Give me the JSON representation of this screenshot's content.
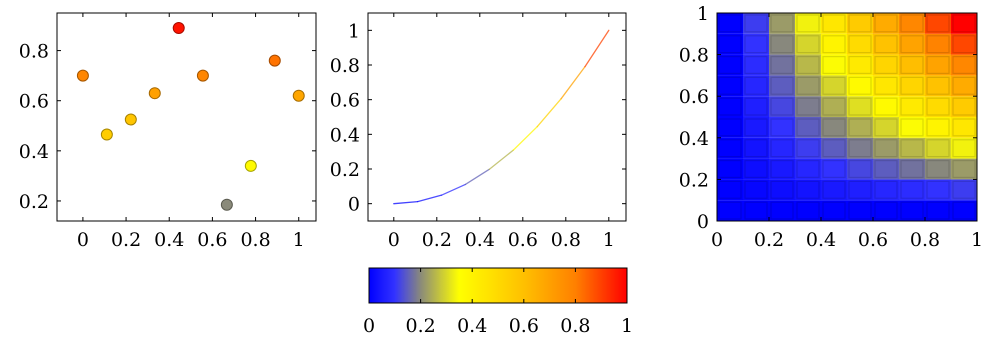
{
  "colormap": {
    "name": "hot2",
    "stops": [
      {
        "pos": 0.0,
        "color": "#0000ff"
      },
      {
        "pos": 0.1,
        "color": "#3333ff"
      },
      {
        "pos": 0.2,
        "color": "#8a8a7a"
      },
      {
        "pos": 0.35,
        "color": "#ffff00"
      },
      {
        "pos": 0.6,
        "color": "#ffc000"
      },
      {
        "pos": 0.8,
        "color": "#ff8000"
      },
      {
        "pos": 1.0,
        "color": "#ff0000"
      }
    ]
  },
  "chart_data": [
    {
      "type": "scatter",
      "title": "",
      "xlabel": "",
      "ylabel": "",
      "xlim": [
        -0.12,
        1.08
      ],
      "ylim": [
        0.12,
        0.95
      ],
      "xticks": [
        "0",
        "0.2",
        "0.4",
        "0.6",
        "0.8",
        "1"
      ],
      "yticks": [
        "0.2",
        "0.4",
        "0.6",
        "0.8"
      ],
      "xtick_values": [
        0,
        0.2,
        0.4,
        0.6,
        0.8,
        1
      ],
      "ytick_values": [
        0.2,
        0.4,
        0.6,
        0.8
      ],
      "points": [
        {
          "x": 0.0,
          "y": 0.7,
          "c": 0.78
        },
        {
          "x": 0.111,
          "y": 0.465,
          "c": 0.55
        },
        {
          "x": 0.222,
          "y": 0.525,
          "c": 0.58
        },
        {
          "x": 0.333,
          "y": 0.63,
          "c": 0.7
        },
        {
          "x": 0.444,
          "y": 0.89,
          "c": 0.97
        },
        {
          "x": 0.556,
          "y": 0.7,
          "c": 0.78
        },
        {
          "x": 0.667,
          "y": 0.185,
          "c": 0.2
        },
        {
          "x": 0.778,
          "y": 0.34,
          "c": 0.37
        },
        {
          "x": 0.889,
          "y": 0.76,
          "c": 0.82
        },
        {
          "x": 1.0,
          "y": 0.62,
          "c": 0.68
        }
      ]
    },
    {
      "type": "line",
      "title": "",
      "xlabel": "",
      "ylabel": "",
      "xlim": [
        -0.12,
        1.08
      ],
      "ylim": [
        -0.1,
        1.1
      ],
      "xticks": [
        "0",
        "0.2",
        "0.4",
        "0.6",
        "0.8",
        "1"
      ],
      "yticks": [
        "0",
        "0.2",
        "0.4",
        "0.6",
        "0.8",
        "1"
      ],
      "xtick_values": [
        0,
        0.2,
        0.4,
        0.6,
        0.8,
        1
      ],
      "ytick_values": [
        0,
        0.2,
        0.4,
        0.6,
        0.8,
        1
      ],
      "x": [
        0,
        0.111,
        0.222,
        0.333,
        0.444,
        0.556,
        0.667,
        0.778,
        0.889,
        1.0
      ],
      "y": [
        0,
        0.012,
        0.049,
        0.111,
        0.198,
        0.309,
        0.444,
        0.605,
        0.79,
        1.0
      ],
      "color_by": "y"
    },
    {
      "type": "heatmap",
      "title": "",
      "xlabel": "",
      "ylabel": "",
      "xlim": [
        0,
        1
      ],
      "ylim": [
        0,
        1
      ],
      "xticks": [
        "0",
        "0.2",
        "0.4",
        "0.6",
        "0.8",
        "1"
      ],
      "yticks": [
        "0",
        "0.2",
        "0.4",
        "0.6",
        "0.8",
        "1"
      ],
      "xtick_values": [
        0,
        0.2,
        0.4,
        0.6,
        0.8,
        1
      ],
      "ytick_values": [
        0,
        0.2,
        0.4,
        0.6,
        0.8,
        1
      ],
      "grid_cells": 10,
      "value_formula": "x*y"
    },
    {
      "type": "colorbar",
      "orientation": "horizontal",
      "range": [
        0,
        1
      ],
      "ticks": [
        "0",
        "0.2",
        "0.4",
        "0.6",
        "0.8",
        "1"
      ],
      "tick_values": [
        0,
        0.2,
        0.4,
        0.6,
        0.8,
        1
      ]
    }
  ]
}
